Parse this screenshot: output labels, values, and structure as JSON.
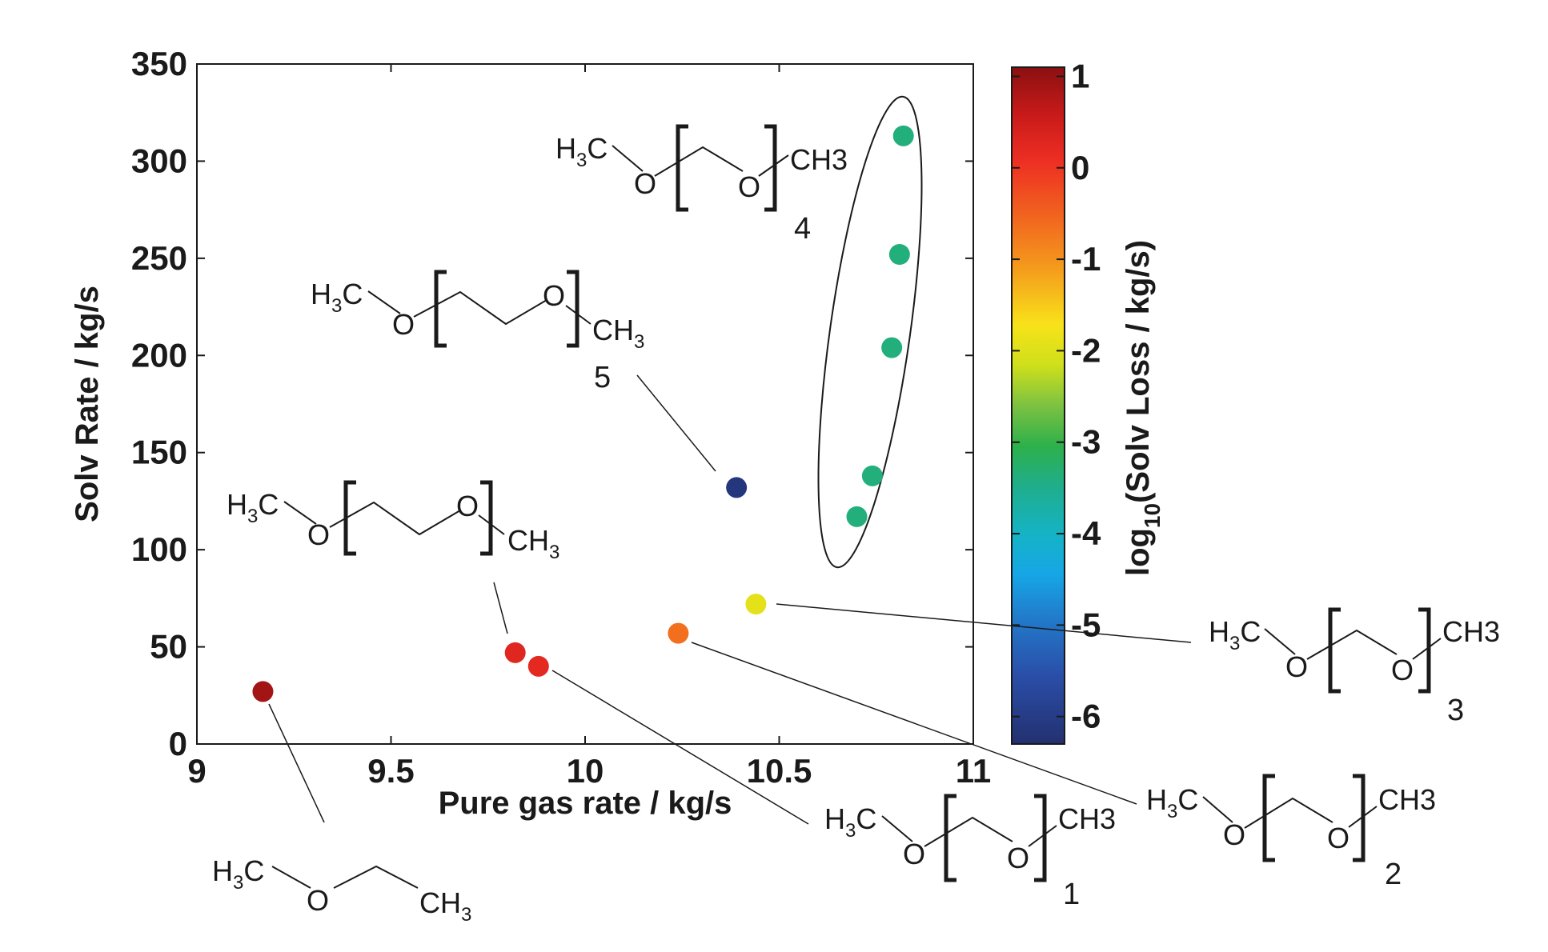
{
  "chart_data": {
    "type": "scatter",
    "xlabel": "Pure gas rate / kg/s",
    "ylabel": "Solv Rate / kg/s",
    "xlim": [
      9,
      11
    ],
    "ylim": [
      0,
      350
    ],
    "xticks": [
      "9",
      "9.5",
      "10",
      "10.5",
      "11"
    ],
    "yticks": [
      "0",
      "50",
      "100",
      "150",
      "200",
      "250",
      "300",
      "350"
    ],
    "colorbar": {
      "label_main": "log",
      "label_sub": "10",
      "label_rest": "(Solv Loss / kg/s)",
      "range": [
        -6.3,
        1.1
      ],
      "ticks": [
        "1",
        "0",
        "-1",
        "-2",
        "-3",
        "-4",
        "-5",
        "-6"
      ],
      "colormap": "jet"
    },
    "points": [
      {
        "x": 9.17,
        "y": 27,
        "c": 0.9
      },
      {
        "x": 9.82,
        "y": 47,
        "c": 0.3
      },
      {
        "x": 9.88,
        "y": 40,
        "c": 0.25
      },
      {
        "x": 10.24,
        "y": 57,
        "c": -0.6
      },
      {
        "x": 10.44,
        "y": 72,
        "c": -1.8
      },
      {
        "x": 10.39,
        "y": 132,
        "c": -6.1
      },
      {
        "x": 10.7,
        "y": 117,
        "c": -3.2
      },
      {
        "x": 10.74,
        "y": 138,
        "c": -3.2
      },
      {
        "x": 10.79,
        "y": 204,
        "c": -3.2
      },
      {
        "x": 10.81,
        "y": 252,
        "c": -3.2
      },
      {
        "x": 10.82,
        "y": 313,
        "c": -3.2
      }
    ],
    "grid": false
  },
  "annotations": {
    "mol0": {
      "h3c_main": "H",
      "h3c_sub": "3",
      "h3c_end": "C",
      "o": "O",
      "ch3_main": "CH",
      "ch3_sub": "3"
    },
    "mol1": {
      "h3c_main": "H",
      "h3c_sub": "3",
      "h3c_end": "C",
      "o1": "O",
      "o2": "O",
      "ch3": "CH3",
      "number": "1"
    },
    "mol2": {
      "h3c_main": "H",
      "h3c_sub": "3",
      "h3c_end": "C",
      "o1": "O",
      "o2": "O",
      "ch3": "CH3",
      "number": "2"
    },
    "mol3": {
      "h3c_main": "H",
      "h3c_sub": "3",
      "h3c_end": "C",
      "o1": "O",
      "o2": "O",
      "ch3": "CH3",
      "number": "3"
    },
    "mol4": {
      "h3c_main": "H",
      "h3c_sub": "3",
      "h3c_end": "C",
      "o1": "O",
      "o2": "O",
      "ch3": "CH3",
      "number": "4"
    },
    "mol5": {
      "h3c_main": "H",
      "h3c_sub": "3",
      "h3c_end": "C",
      "o1": "O",
      "o2": "O",
      "ch3_main": "CH",
      "ch3_sub": "3",
      "number": "5"
    },
    "mol6": {
      "h3c_main": "H",
      "h3c_sub": "3",
      "h3c_end": "C",
      "o1": "O",
      "o2": "O",
      "ch3_main": "CH",
      "ch3_sub": "3"
    }
  },
  "colors": {
    "axis": "#1a1a1a",
    "teal_points": "#1fae8c"
  }
}
